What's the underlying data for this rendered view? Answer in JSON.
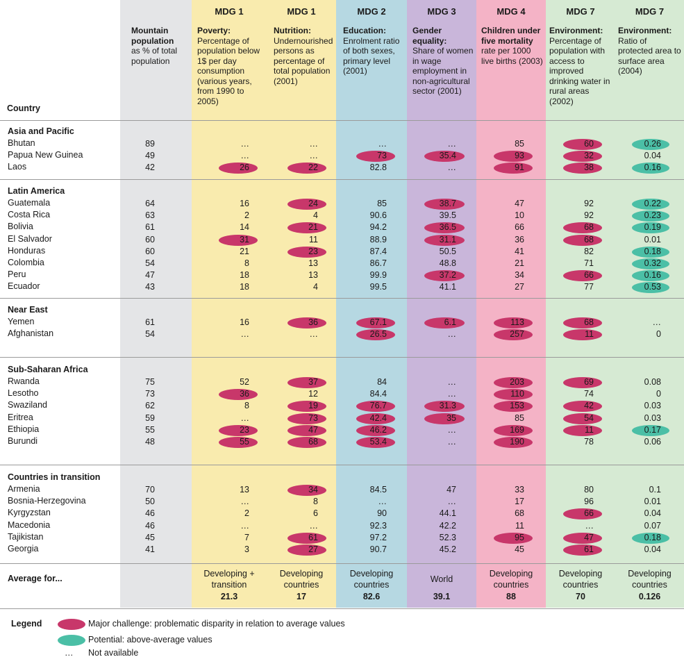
{
  "columns": [
    {
      "key": "mountain",
      "mdg": "",
      "title": "Mountain population",
      "desc": "as % of total population",
      "color": "#e4e5e7",
      "bg_left": 173,
      "bg_width": 103,
      "text_left": 189,
      "cell_right": 223
    },
    {
      "key": "poverty",
      "mdg": "MDG 1",
      "title": "Poverty:",
      "desc": "Percentage of population below 1$ per day consumption (various years, from 1990 to 2005)",
      "color": "#f9ebae",
      "bg_left": 276,
      "bg_width": 108,
      "text_left": 284,
      "cell_right": 359
    },
    {
      "key": "nutrition",
      "mdg": "MDG 1",
      "title": "Nutrition:",
      "desc": "Undernourished persons as percentage of total population (2001)",
      "color": "#f9ebae",
      "bg_left": 384,
      "bg_width": 100,
      "text_left": 394,
      "cell_right": 458
    },
    {
      "key": "education",
      "mdg": "MDG 2",
      "title": "Education:",
      "desc": "Enrolment ratio of both sexes, primary level (2001)",
      "color": "#b6d8e2",
      "bg_left": 484,
      "bg_width": 102,
      "text_left": 494,
      "cell_right": 557
    },
    {
      "key": "gender",
      "mdg": "MDG 3",
      "title": "Gender equality:",
      "desc": "Share of women in wage employment in non-agricultural sector (2001)",
      "color": "#c9b6da",
      "bg_left": 586,
      "bg_width": 100,
      "text_left": 594,
      "cell_right": 657
    },
    {
      "key": "child",
      "mdg": "MDG 4",
      "title": "Children under five mortality",
      "desc": "rate per 1000 live births (2003)",
      "color": "#f4b3c6",
      "bg_left": 686,
      "bg_width": 100,
      "text_left": 693,
      "cell_right": 755
    },
    {
      "key": "water",
      "mdg": "MDG 7",
      "title": "Environment:",
      "desc": "Percentage of population with access to improved drinking water in rural areas (2002)",
      "color": "#d6ead3",
      "bg_left": 786,
      "bg_width": 100,
      "text_left": 791,
      "cell_right": 855
    },
    {
      "key": "protected",
      "mdg": "MDG 7",
      "title": "Environment:",
      "desc": "Ratio of protected area to surface area (2004)",
      "color": "#d6ead3",
      "bg_left": 886,
      "bg_width": 99,
      "text_left": 890,
      "cell_right": 952
    }
  ],
  "country_header": "Country",
  "groups": [
    {
      "region": "Asia and Pacific",
      "rows": [
        {
          "country": "Bhutan",
          "values": [
            "89",
            "…",
            "…",
            "…",
            "…",
            "85",
            "60",
            "0.26"
          ],
          "flags": [
            "",
            "",
            "",
            "",
            "",
            "",
            "major",
            "potential"
          ]
        },
        {
          "country": "Papua New Guinea",
          "values": [
            "49",
            "…",
            "…",
            "73",
            "35.4",
            "93",
            "32",
            "0.04"
          ],
          "flags": [
            "",
            "",
            "",
            "major",
            "major",
            "major",
            "major",
            ""
          ]
        },
        {
          "country": "Laos",
          "values": [
            "42",
            "26",
            "22",
            "82.8",
            "…",
            "91",
            "38",
            "0.16"
          ],
          "flags": [
            "",
            "major",
            "major",
            "",
            "",
            "major",
            "major",
            "potential"
          ]
        }
      ]
    },
    {
      "region": "Latin America",
      "rows": [
        {
          "country": "Guatemala",
          "values": [
            "64",
            "16",
            "24",
            "85",
            "38.7",
            "47",
            "92",
            "0.22"
          ],
          "flags": [
            "",
            "",
            "major",
            "",
            "major",
            "",
            "",
            "potential"
          ]
        },
        {
          "country": "Costa Rica",
          "values": [
            "63",
            "2",
            "4",
            "90.6",
            "39.5",
            "10",
            "92",
            "0.23"
          ],
          "flags": [
            "",
            "",
            "",
            "",
            "",
            "",
            "",
            "potential"
          ]
        },
        {
          "country": "Bolivia",
          "values": [
            "61",
            "14",
            "21",
            "94.2",
            "36.5",
            "66",
            "68",
            "0.19"
          ],
          "flags": [
            "",
            "",
            "major",
            "",
            "major",
            "",
            "major",
            "potential"
          ]
        },
        {
          "country": "El Salvador",
          "values": [
            "60",
            "31",
            "11",
            "88.9",
            "31.1",
            "36",
            "68",
            "0.01"
          ],
          "flags": [
            "",
            "major",
            "",
            "",
            "major",
            "",
            "major",
            ""
          ]
        },
        {
          "country": "Honduras",
          "values": [
            "60",
            "21",
            "23",
            "87.4",
            "50.5",
            "41",
            "82",
            "0.18"
          ],
          "flags": [
            "",
            "",
            "major",
            "",
            "",
            "",
            "",
            "potential"
          ]
        },
        {
          "country": "Colombia",
          "values": [
            "54",
            "8",
            "13",
            "86.7",
            "48.8",
            "21",
            "71",
            "0.32"
          ],
          "flags": [
            "",
            "",
            "",
            "",
            "",
            "",
            "",
            "potential"
          ]
        },
        {
          "country": "Peru",
          "values": [
            "47",
            "18",
            "13",
            "99.9",
            "37.2",
            "34",
            "66",
            "0.16"
          ],
          "flags": [
            "",
            "",
            "",
            "",
            "major",
            "",
            "major",
            "potential"
          ]
        },
        {
          "country": "Ecuador",
          "values": [
            "43",
            "18",
            "4",
            "99.5",
            "41.1",
            "27",
            "77",
            "0.53"
          ],
          "flags": [
            "",
            "",
            "",
            "",
            "",
            "",
            "",
            "potential"
          ]
        }
      ]
    },
    {
      "region": "Near East",
      "rows": [
        {
          "country": "Yemen",
          "values": [
            "61",
            "16",
            "36",
            "67.1",
            "6.1",
            "113",
            "68",
            "…"
          ],
          "flags": [
            "",
            "",
            "major",
            "major",
            "major",
            "major",
            "major",
            ""
          ]
        },
        {
          "country": "Afghanistan",
          "values": [
            "54",
            "…",
            "…",
            "26.5",
            "…",
            "257",
            "11",
            "0"
          ],
          "flags": [
            "",
            "",
            "",
            "major",
            "",
            "major",
            "major",
            ""
          ]
        }
      ]
    },
    {
      "region": "Sub-Saharan Africa",
      "rows": [
        {
          "country": "Rwanda",
          "values": [
            "75",
            "52",
            "37",
            "84",
            "…",
            "203",
            "69",
            "0.08"
          ],
          "flags": [
            "",
            "",
            "major",
            "",
            "",
            "major",
            "major",
            ""
          ]
        },
        {
          "country": "Lesotho",
          "values": [
            "73",
            "36",
            "12",
            "84.4",
            "…",
            "110",
            "74",
            "0"
          ],
          "flags": [
            "",
            "major",
            "",
            "",
            "",
            "major",
            "",
            ""
          ]
        },
        {
          "country": "Swaziland",
          "values": [
            "62",
            "8",
            "19",
            "76.7",
            "31.3",
            "153",
            "42",
            "0.03"
          ],
          "flags": [
            "",
            "",
            "major",
            "major",
            "major",
            "major",
            "major",
            ""
          ]
        },
        {
          "country": "Eritrea",
          "values": [
            "59",
            "…",
            "73",
            "42.4",
            "35",
            "85",
            "54",
            "0.03"
          ],
          "flags": [
            "",
            "",
            "major",
            "major",
            "major",
            "",
            "major",
            ""
          ]
        },
        {
          "country": "Ethiopia",
          "values": [
            "55",
            "23",
            "47",
            "46.2",
            "…",
            "169",
            "11",
            "0.17"
          ],
          "flags": [
            "",
            "major",
            "major",
            "major",
            "",
            "major",
            "major",
            "potential"
          ]
        },
        {
          "country": "Burundi",
          "values": [
            "48",
            "55",
            "68",
            "53.4",
            "…",
            "190",
            "78",
            "0.06"
          ],
          "flags": [
            "",
            "major",
            "major",
            "major",
            "",
            "major",
            "",
            ""
          ]
        }
      ]
    },
    {
      "region": "Countries in transition",
      "rows": [
        {
          "country": "Armenia",
          "values": [
            "70",
            "13",
            "34",
            "84.5",
            "47",
            "33",
            "80",
            "0.1"
          ],
          "flags": [
            "",
            "",
            "major",
            "",
            "",
            "",
            "",
            ""
          ]
        },
        {
          "country": "Bosnia-Herzegovina",
          "values": [
            "50",
            "…",
            "8",
            "…",
            "…",
            "17",
            "96",
            "0.01"
          ],
          "flags": [
            "",
            "",
            "",
            "",
            "",
            "",
            "",
            ""
          ]
        },
        {
          "country": "Kyrgyzstan",
          "values": [
            "46",
            "2",
            "6",
            "90",
            "44.1",
            "68",
            "66",
            "0.04"
          ],
          "flags": [
            "",
            "",
            "",
            "",
            "",
            "",
            "major",
            ""
          ]
        },
        {
          "country": "Macedonia",
          "values": [
            "46",
            "…",
            "…",
            "92.3",
            "42.2",
            "11",
            "…",
            "0.07"
          ],
          "flags": [
            "",
            "",
            "",
            "",
            "",
            "",
            "",
            ""
          ]
        },
        {
          "country": "Tajikistan",
          "values": [
            "45",
            "7",
            "61",
            "97.2",
            "52.3",
            "95",
            "47",
            "0.18"
          ],
          "flags": [
            "",
            "",
            "major",
            "",
            "",
            "major",
            "major",
            "potential"
          ]
        },
        {
          "country": "Georgia",
          "values": [
            "41",
            "3",
            "27",
            "90.7",
            "45.2",
            "45",
            "61",
            "0.04"
          ],
          "flags": [
            "",
            "",
            "major",
            "",
            "",
            "",
            "major",
            ""
          ]
        }
      ]
    }
  ],
  "average": {
    "title": "Average for...",
    "labels": [
      "",
      "Developing + transition",
      "Developing countries",
      "Developing countries",
      "World",
      "Developing countries",
      "Developing countries",
      "Developing countries"
    ],
    "values": [
      "",
      "21.3",
      "17",
      "82.6",
      "39.1",
      "88",
      "70",
      "0.126"
    ]
  },
  "legend": {
    "title": "Legend",
    "major": "Major challenge: problematic disparity in relation to average values",
    "potential": "Potential: above-average values",
    "dots": "…",
    "na": "Not available"
  },
  "colors": {
    "major": "#c8376a",
    "potential": "#4bbfa6",
    "mountain": "#e4e5e7",
    "mdg1": "#f9ebae",
    "mdg2": "#b6d8e2",
    "mdg3": "#c9b6da",
    "mdg4": "#f4b3c6",
    "mdg7": "#d6ead3"
  }
}
